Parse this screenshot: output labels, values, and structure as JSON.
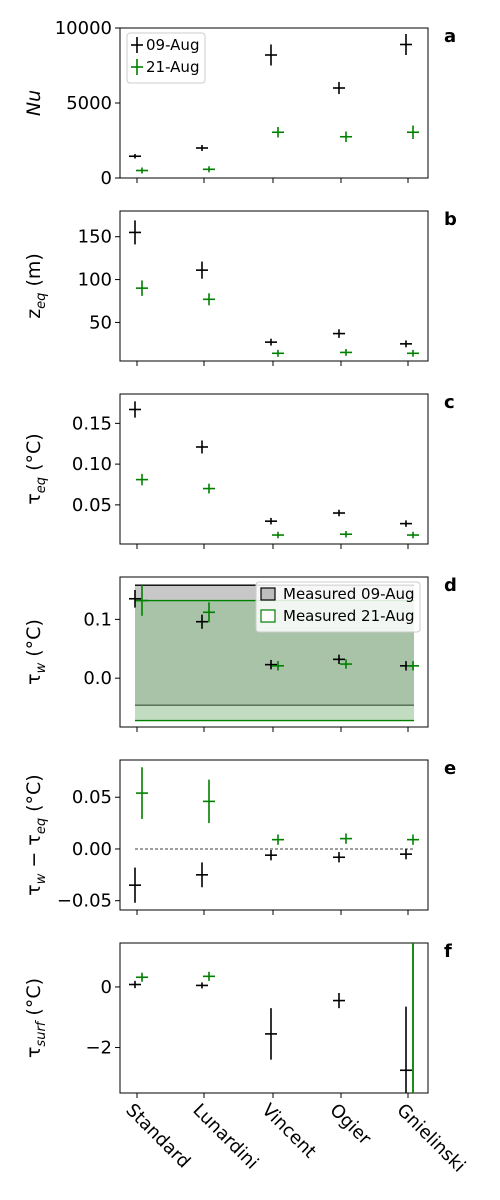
{
  "chart_data": {
    "type": "scatter",
    "categories": [
      "Standard",
      "Lunardini",
      "Vincent",
      "Ogier",
      "Gnielinski"
    ],
    "panels": [
      {
        "letter": "a",
        "ylabel": {
          "main": "Nu",
          "sub": "",
          "unit": ""
        },
        "ylim": [
          0,
          10000
        ],
        "yticks": [
          {
            "v": 0,
            "label": "0"
          },
          {
            "v": 5000,
            "label": "5000"
          },
          {
            "v": 10000,
            "label": "10000"
          }
        ],
        "legend": {
          "placement": "top-left",
          "entries": [
            "09-Aug",
            "21-Aug"
          ]
        },
        "series": [
          {
            "name": "09-Aug",
            "color": "#000000",
            "values": [
              1450,
              2000,
              8200,
              6000,
              8900
            ],
            "err": [
              150,
              200,
              700,
              400,
              700
            ]
          },
          {
            "name": "21-Aug",
            "color": "#008000",
            "values": [
              500,
              580,
              3050,
              2750,
              3050
            ],
            "err": [
              200,
              200,
              350,
              350,
              450
            ]
          }
        ]
      },
      {
        "letter": "b",
        "ylabel": {
          "main": "z",
          "sub": "eq",
          "unit": " (m)"
        },
        "ylim": [
          5,
          180
        ],
        "yticks": [
          {
            "v": 50,
            "label": "50"
          },
          {
            "v": 100,
            "label": "100"
          },
          {
            "v": 150,
            "label": "150"
          }
        ],
        "series": [
          {
            "name": "09-Aug",
            "color": "#000000",
            "values": [
              155,
              111,
              27,
              37,
              25
            ],
            "err": [
              14,
              10,
              4,
              5,
              4
            ]
          },
          {
            "name": "21-Aug",
            "color": "#008000",
            "values": [
              90,
              77,
              14,
              15,
              14
            ],
            "err": [
              9,
              7,
              4,
              4,
              4
            ]
          }
        ]
      },
      {
        "letter": "c",
        "ylabel": {
          "main": "τ",
          "sub": "eq",
          "unit": " (°C)"
        },
        "ylim": [
          0.002,
          0.186
        ],
        "yticks": [
          {
            "v": 0.05,
            "label": "0.05"
          },
          {
            "v": 0.1,
            "label": "0.10"
          },
          {
            "v": 0.15,
            "label": "0.15"
          }
        ],
        "series": [
          {
            "name": "09-Aug",
            "color": "#000000",
            "values": [
              0.167,
              0.121,
              0.03,
              0.04,
              0.027
            ],
            "err": [
              0.01,
              0.008,
              0.004,
              0.004,
              0.004
            ]
          },
          {
            "name": "21-Aug",
            "color": "#008000",
            "values": [
              0.081,
              0.07,
              0.013,
              0.014,
              0.013
            ],
            "err": [
              0.007,
              0.006,
              0.004,
              0.004,
              0.004
            ]
          }
        ]
      },
      {
        "letter": "d",
        "ylabel": {
          "main": "τ",
          "sub": "w",
          "unit": " (°C)"
        },
        "ylim": [
          -0.083,
          0.172
        ],
        "yticks": [
          {
            "v": 0.0,
            "label": "0.0"
          },
          {
            "v": 0.1,
            "label": "0.1"
          }
        ],
        "legend": {
          "placement": "top-right",
          "entries": [
            "Measured 09-Aug",
            "Measured 21-Aug"
          ]
        },
        "bands": [
          {
            "name": "Measured 09-Aug",
            "color": "#000000",
            "low": -0.046,
            "high": 0.158,
            "fill": "#9a9a9a"
          },
          {
            "name": "Measured 21-Aug",
            "color": "#008000",
            "low": -0.072,
            "high": 0.132,
            "fill": "#90c090"
          }
        ],
        "series": [
          {
            "name": "09-Aug",
            "color": "#000000",
            "values": [
              0.135,
              0.096,
              0.023,
              0.032,
              0.021
            ],
            "err": [
              0.015,
              0.012,
              0.008,
              0.008,
              0.008
            ]
          },
          {
            "name": "21-Aug",
            "color": "#008000",
            "values": [
              0.132,
              0.112,
              0.021,
              0.024,
              0.021
            ],
            "err": [
              0.026,
              0.017,
              0.008,
              0.008,
              0.008
            ]
          }
        ]
      },
      {
        "letter": "e",
        "ylabel": {
          "main": "τ",
          "sub": "w",
          "unit": " − τ",
          "sub2": "eq",
          "unit2": " (°C)"
        },
        "ylim": [
          -0.059,
          0.086
        ],
        "yticks": [
          {
            "v": -0.05,
            "label": "−0.05"
          },
          {
            "v": 0.0,
            "label": "0.00"
          },
          {
            "v": 0.05,
            "label": "0.05"
          }
        ],
        "zeroline": true,
        "series": [
          {
            "name": "09-Aug",
            "color": "#000000",
            "values": [
              -0.035,
              -0.025,
              -0.006,
              -0.008,
              -0.005
            ],
            "err": [
              0.017,
              0.012,
              0.005,
              0.005,
              0.005
            ]
          },
          {
            "name": "21-Aug",
            "color": "#008000",
            "values": [
              0.054,
              0.046,
              0.009,
              0.01,
              0.009
            ],
            "err": [
              0.025,
              0.021,
              0.005,
              0.005,
              0.005
            ]
          }
        ]
      },
      {
        "letter": "f",
        "ylabel": {
          "main": "τ",
          "sub": "surf",
          "unit": " (°C)"
        },
        "ylim": [
          -3.5,
          1.45
        ],
        "yticks": [
          {
            "v": -2,
            "label": "−2"
          },
          {
            "v": 0,
            "label": "0"
          }
        ],
        "series": [
          {
            "name": "09-Aug",
            "color": "#000000",
            "values": [
              0.08,
              0.05,
              -1.55,
              -0.45,
              -2.75
            ],
            "err": [
              0.12,
              0.1,
              0.85,
              0.25,
              2.1
            ]
          },
          {
            "name": "21-Aug",
            "color": "#008000",
            "values": [
              0.32,
              0.35,
              null,
              null,
              null
            ],
            "err": [
              0.15,
              0.15,
              0,
              0,
              0
            ],
            "vline": {
              "index": 4,
              "low": -3.5,
              "high": 1.45
            }
          }
        ]
      }
    ]
  }
}
